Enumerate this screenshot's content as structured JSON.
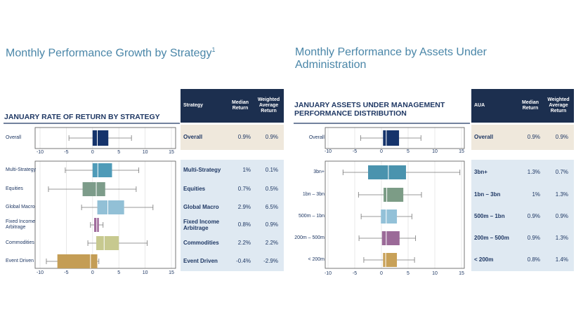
{
  "left": {
    "title": "Monthly Performance Growth by Strategy",
    "title_note": "1",
    "subtitle": "JANUARY RATE OF RETURN BY STRATEGY",
    "table": {
      "header": [
        "Strategy",
        "Median Return",
        "Weighted Average Return"
      ],
      "rows": [
        [
          "Overall",
          "0.9%",
          "0.9%"
        ],
        [
          "Multi-Strategy",
          "1%",
          "0.1%"
        ],
        [
          "Equities",
          "0.7%",
          "0.5%"
        ],
        [
          "Global Macro",
          "2.9%",
          "6.5%"
        ],
        [
          "Fixed Income Arbitrage",
          "0.8%",
          "0.9%"
        ],
        [
          "Commodities",
          "2.2%",
          "2.2%"
        ],
        [
          "Event Driven",
          "-0.4%",
          "-2.9%"
        ]
      ]
    }
  },
  "right": {
    "title": "Monthly Performance by Assets Under Administration",
    "subtitle": "JANUARY ASSETS UNDER MANAGEMENT PERFORMANCE DISTRIBUTION",
    "table": {
      "header": [
        "AUA",
        "Median Return",
        "Weighted Average Return"
      ],
      "rows": [
        [
          "Overall",
          "0.9%",
          "0.9%"
        ],
        [
          "3bn+",
          "1.3%",
          "0.7%"
        ],
        [
          "1bn – 3bn",
          "1%",
          "1.3%"
        ],
        [
          "500m – 1bn",
          "0.9%",
          "0.9%"
        ],
        [
          "200m – 500m",
          "0.9%",
          "1.3%"
        ],
        [
          "< 200m",
          "0.8%",
          "1.4%"
        ]
      ]
    }
  },
  "chart_data": [
    {
      "type": "box",
      "categories": [
        "Overall"
      ],
      "colors": [
        "#15336b"
      ],
      "low": [
        -4.5
      ],
      "q1": [
        0
      ],
      "median": [
        0.9
      ],
      "q3": [
        3
      ],
      "high": [
        7.4
      ],
      "xlim": [
        -10,
        15
      ],
      "xticks": [
        -10,
        -5,
        0,
        5,
        10,
        15
      ],
      "grid": true
    },
    {
      "type": "box",
      "categories": [
        "Multi-Strategy",
        "Equities",
        "Global Macro",
        "Fixed Income Arbitrage",
        "Commodities",
        "Event Driven"
      ],
      "colors": [
        "#4f9bb8",
        "#7d9c8a",
        "#92c0d6",
        "#9f6a9b",
        "#c7c98f",
        "#c49d55"
      ],
      "low": [
        -5.2,
        -8.4,
        -2.1,
        -0.4,
        -0.9,
        -8.8
      ],
      "q1": [
        0,
        -1.9,
        0.9,
        0.3,
        0.7,
        -6.7
      ],
      "median": [
        1,
        0.7,
        2.9,
        0.8,
        2.2,
        -0.4
      ],
      "q3": [
        3.7,
        2.4,
        6,
        1.2,
        5,
        0.9
      ],
      "high": [
        8.8,
        8.3,
        11.5,
        2,
        10.4,
        1.2
      ],
      "xlim": [
        -10,
        15
      ],
      "xticks": [
        -10,
        -5,
        0,
        5,
        10,
        15
      ],
      "grid": true
    },
    {
      "type": "box",
      "categories": [
        "Overall"
      ],
      "colors": [
        "#15336b"
      ],
      "low": [
        -3.9
      ],
      "q1": [
        0.3
      ],
      "median": [
        0.9
      ],
      "q3": [
        3.3
      ],
      "high": [
        7.4
      ],
      "xlim": [
        -10,
        15
      ],
      "xticks": [
        -10,
        -5,
        0,
        5,
        10,
        15
      ],
      "grid": true
    },
    {
      "type": "box",
      "categories": [
        "3bn+",
        "1bn – 3bn",
        "500m – 1bn",
        "200m – 500m",
        "< 200m"
      ],
      "colors": [
        "#4a93ae",
        "#7c9c86",
        "#93c1d8",
        "#9b6a98",
        "#c8a158"
      ],
      "low": [
        -7.2,
        -4.3,
        -3.8,
        -4.2,
        -3.3
      ],
      "q1": [
        -2.5,
        0.4,
        -0.1,
        0.1,
        0.3
      ],
      "median": [
        1.3,
        1,
        0.9,
        0.9,
        0.8
      ],
      "q3": [
        4.6,
        4.1,
        2.9,
        3.4,
        2.9
      ],
      "high": [
        14.7,
        7.5,
        5.7,
        6.4,
        6.2
      ],
      "xlim": [
        -10,
        15
      ],
      "xticks": [
        -10,
        -5,
        0,
        5,
        10,
        15
      ],
      "grid": true
    }
  ]
}
